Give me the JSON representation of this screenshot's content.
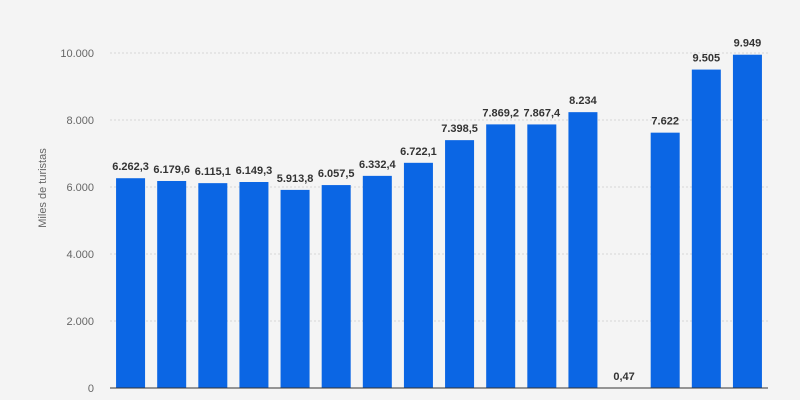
{
  "chart_data": {
    "type": "bar",
    "ylabel": "Miles de turistas",
    "xlabel": "",
    "ylim": [
      0,
      10000
    ],
    "yticks": [
      0,
      2000,
      4000,
      6000,
      8000,
      10000
    ],
    "ytick_labels": [
      "0",
      "2.000",
      "4.000",
      "6.000",
      "8.000",
      "10.000"
    ],
    "grid": true,
    "bar_color": "#0b66e4",
    "series": [
      {
        "values": [
          6262.3,
          6179.6,
          6115.1,
          6149.3,
          5913.8,
          6057.5,
          6332.4,
          6722.1,
          7398.5,
          7869.2,
          7867.4,
          8234,
          0.47,
          7622,
          9505,
          9949
        ],
        "labels": [
          "6.262,3",
          "6.179,6",
          "6.115,1",
          "6.149,3",
          "5.913,8",
          "6.057,5",
          "6.332,4",
          "6.722,1",
          "7.398,5",
          "7.869,2",
          "7.867,4",
          "8.234",
          "0,47",
          "7.622",
          "9.505",
          "9.949"
        ]
      }
    ]
  }
}
